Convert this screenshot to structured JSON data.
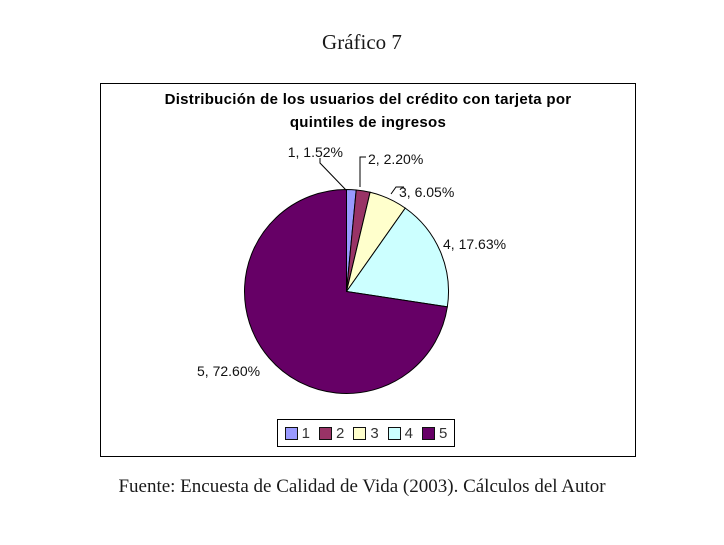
{
  "page": {
    "title": "Gráfico 7",
    "source_note": "Fuente: Encuesta de Calidad de Vida (2003). Cálculos del Autor"
  },
  "chart_data": {
    "type": "pie",
    "title": "Distribución de los usuarios del crédito con tarjeta por quintiles de ingresos",
    "title_line1": "Distribución de los usuarios del crédito con tarjeta por",
    "title_line2": "quintiles de ingresos",
    "categories": [
      "1",
      "2",
      "3",
      "4",
      "5"
    ],
    "values": [
      1.52,
      2.2,
      6.05,
      17.63,
      72.6
    ],
    "unit": "%",
    "point_labels": [
      "1, 1.52%",
      "2, 2.20%",
      "3, 6.05%",
      "4, 17.63%",
      "5, 72.60%"
    ],
    "colors": [
      "#9999ff",
      "#993366",
      "#ffffcc",
      "#ccffff",
      "#660066"
    ],
    "slice_border_color": "#000000",
    "start_angle_deg": 0,
    "direction": "clockwise",
    "legend_position": "bottom",
    "legend_labels": [
      "1",
      "2",
      "3",
      "4",
      "5"
    ]
  }
}
